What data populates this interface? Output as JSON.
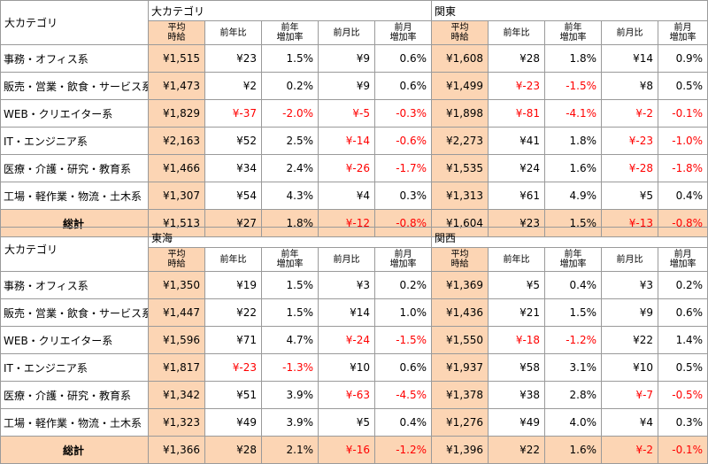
{
  "tables": [
    {
      "category_header": "大カテゴリ",
      "regions": [
        "大カテゴリ",
        "関東"
      ],
      "subheaders": [
        "平均\n時給",
        "前年比",
        "前年\n増加率",
        "前月比",
        "前月\n増加率"
      ],
      "rows": [
        {
          "category": "事務・オフィス系",
          "cells": [
            "¥1,515",
            "¥23",
            "1.5%",
            "¥9",
            "0.6%",
            "¥1,608",
            "¥28",
            "1.8%",
            "¥14",
            "0.9%"
          ]
        },
        {
          "category": "販売・営業・飲食・サービス系",
          "cells": [
            "¥1,473",
            "¥2",
            "0.2%",
            "¥9",
            "0.6%",
            "¥1,499",
            "¥-23",
            "-1.5%",
            "¥8",
            "0.5%"
          ]
        },
        {
          "category": "WEB・クリエイター系",
          "cells": [
            "¥1,829",
            "¥-37",
            "-2.0%",
            "¥-5",
            "-0.3%",
            "¥1,898",
            "¥-81",
            "-4.1%",
            "¥-2",
            "-0.1%"
          ]
        },
        {
          "category": "IT・エンジニア系",
          "cells": [
            "¥2,163",
            "¥52",
            "2.5%",
            "¥-14",
            "-0.6%",
            "¥2,273",
            "¥41",
            "1.8%",
            "¥-23",
            "-1.0%"
          ]
        },
        {
          "category": "医療・介護・研究・教育系",
          "cells": [
            "¥1,466",
            "¥34",
            "2.4%",
            "¥-26",
            "-1.7%",
            "¥1,535",
            "¥24",
            "1.6%",
            "¥-28",
            "-1.8%"
          ]
        },
        {
          "category": "工場・軽作業・物流・土木系",
          "cells": [
            "¥1,307",
            "¥54",
            "4.3%",
            "¥4",
            "0.3%",
            "¥1,313",
            "¥61",
            "4.9%",
            "¥5",
            "0.4%"
          ]
        }
      ],
      "total": {
        "category": "総計",
        "cells": [
          "¥1,513",
          "¥27",
          "1.8%",
          "¥-12",
          "-0.8%",
          "¥1,604",
          "¥23",
          "1.5%",
          "¥-13",
          "-0.8%"
        ]
      }
    },
    {
      "category_header": "大カテゴリ",
      "regions": [
        "東海",
        "関西"
      ],
      "subheaders": [
        "平均\n時給",
        "前年比",
        "前年\n増加率",
        "前月比",
        "前月\n増加率"
      ],
      "rows": [
        {
          "category": "事務・オフィス系",
          "cells": [
            "¥1,350",
            "¥19",
            "1.5%",
            "¥3",
            "0.2%",
            "¥1,369",
            "¥5",
            "0.4%",
            "¥3",
            "0.2%"
          ]
        },
        {
          "category": "販売・営業・飲食・サービス系",
          "cells": [
            "¥1,447",
            "¥22",
            "1.5%",
            "¥14",
            "1.0%",
            "¥1,436",
            "¥21",
            "1.5%",
            "¥9",
            "0.6%"
          ]
        },
        {
          "category": "WEB・クリエイター系",
          "cells": [
            "¥1,596",
            "¥71",
            "4.7%",
            "¥-24",
            "-1.5%",
            "¥1,550",
            "¥-18",
            "-1.2%",
            "¥22",
            "1.4%"
          ]
        },
        {
          "category": "IT・エンジニア系",
          "cells": [
            "¥1,817",
            "¥-23",
            "-1.3%",
            "¥10",
            "0.6%",
            "¥1,937",
            "¥58",
            "3.1%",
            "¥10",
            "0.5%"
          ]
        },
        {
          "category": "医療・介護・研究・教育系",
          "cells": [
            "¥1,342",
            "¥51",
            "3.9%",
            "¥-63",
            "-4.5%",
            "¥1,378",
            "¥38",
            "2.8%",
            "¥-7",
            "-0.5%"
          ]
        },
        {
          "category": "工場・軽作業・物流・土木系",
          "cells": [
            "¥1,323",
            "¥49",
            "3.9%",
            "¥5",
            "0.4%",
            "¥1,276",
            "¥49",
            "4.0%",
            "¥4",
            "0.3%"
          ]
        }
      ],
      "total": {
        "category": "総計",
        "cells": [
          "¥1,366",
          "¥28",
          "2.1%",
          "¥-16",
          "-1.2%",
          "¥1,396",
          "¥22",
          "1.6%",
          "¥-2",
          "-0.1%"
        ]
      }
    }
  ],
  "colors": {
    "highlight": "#fcd5b4",
    "negative": "#ff0000",
    "border": "#9a9a9a"
  }
}
